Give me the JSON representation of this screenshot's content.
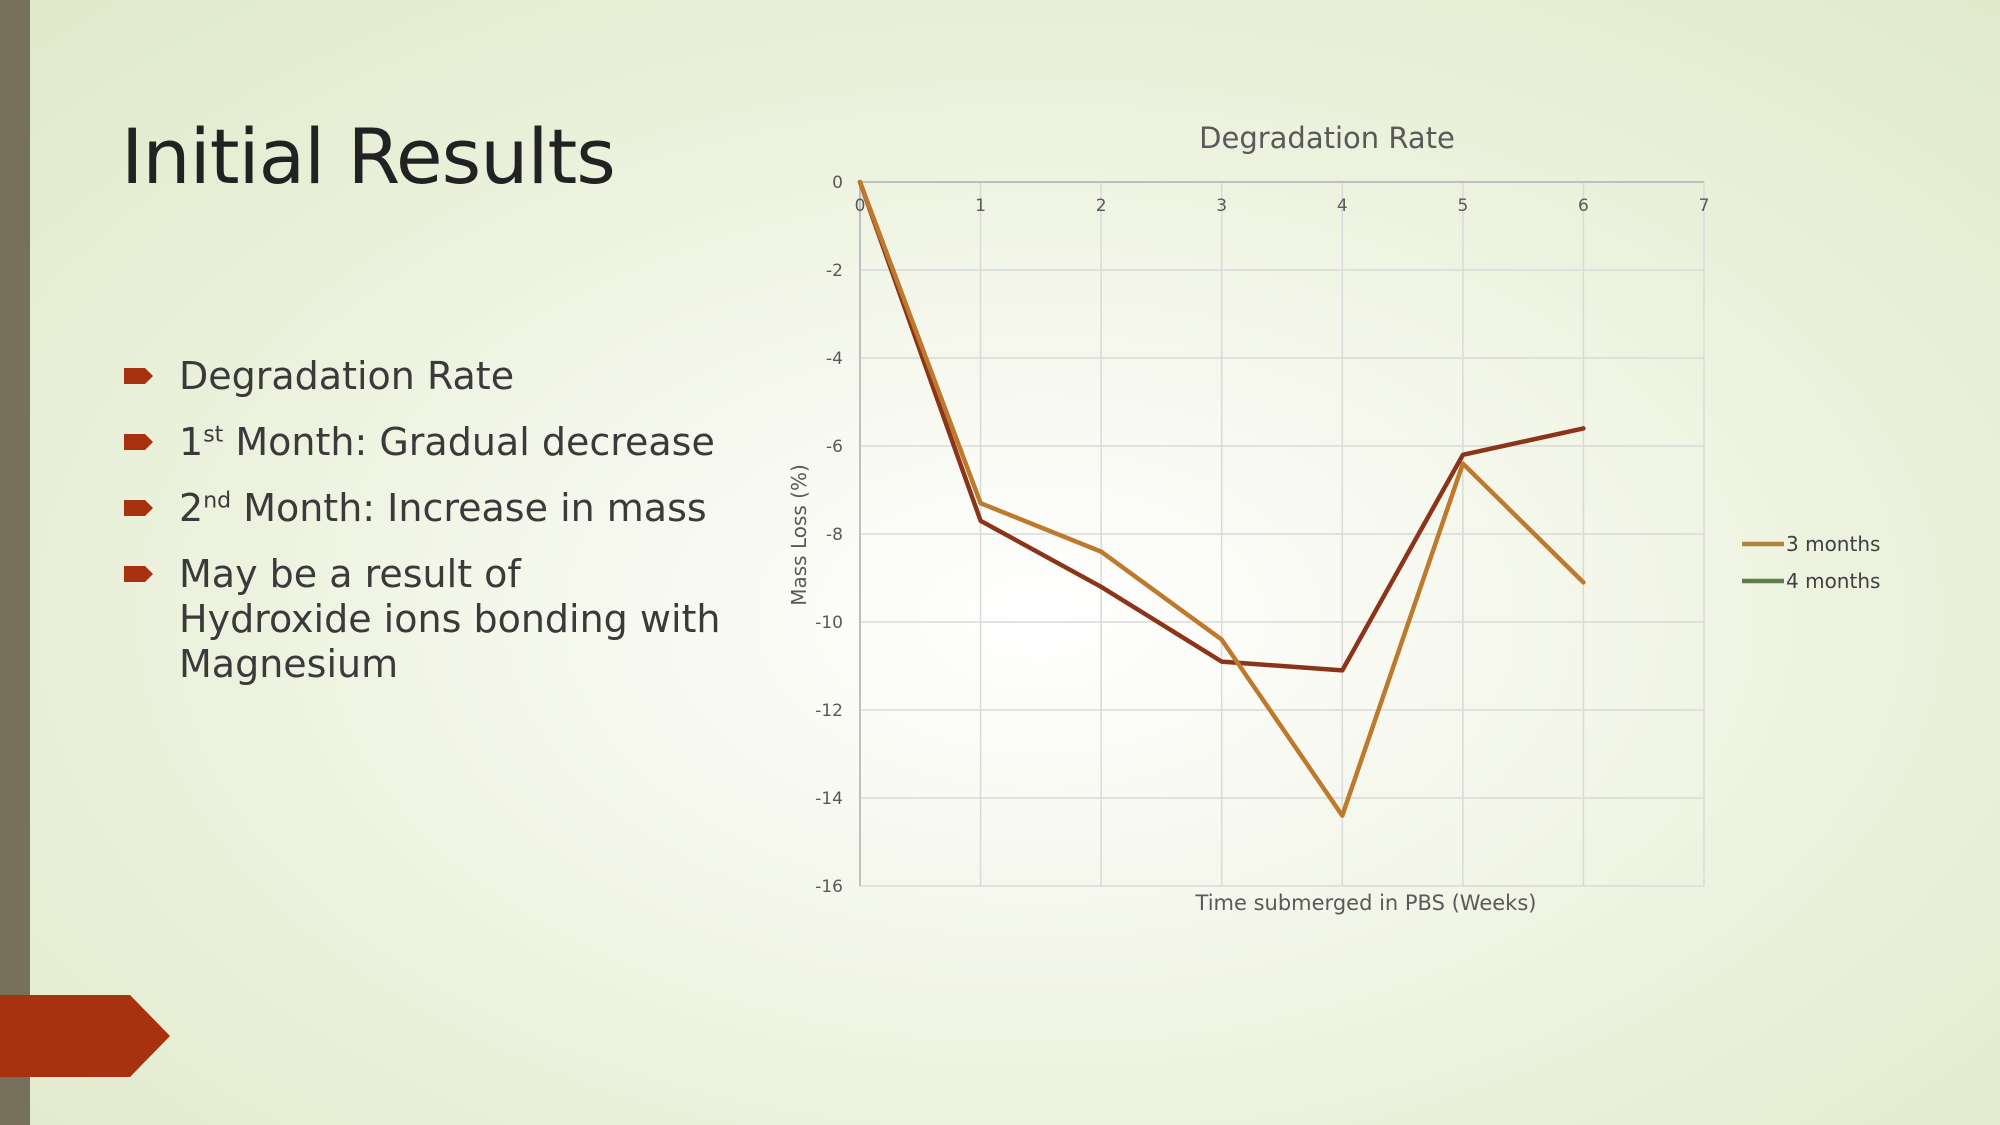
{
  "slide": {
    "title": "Initial Results",
    "accent_color": "#a8310f",
    "sidebar_color": "#77705a"
  },
  "bullets": [
    {
      "text": "Degradation Rate"
    },
    {
      "pre": "1",
      "sup": "st",
      "post": " Month: Gradual decrease"
    },
    {
      "pre": "2",
      "sup": "nd",
      "post": " Month: Increase in mass"
    },
    {
      "text": "May be a result of Hydroxide ions bonding with Magnesium"
    }
  ],
  "chart_data": {
    "type": "line",
    "title": "Degradation Rate",
    "xlabel": "Time submerged in PBS (Weeks)",
    "ylabel": "Mass Loss (%)",
    "xlim": [
      0,
      7
    ],
    "ylim": [
      -16,
      0
    ],
    "x_ticks": [
      0,
      1,
      2,
      3,
      4,
      5,
      6,
      7
    ],
    "y_ticks": [
      0,
      -2,
      -4,
      -6,
      -8,
      -10,
      -12,
      -14,
      -16
    ],
    "grid": true,
    "legend": "right",
    "legend_entries": [
      {
        "name": "3 months",
        "color": "#b0823c"
      },
      {
        "name": "4 months",
        "color": "#5f7f4a"
      }
    ],
    "series": [
      {
        "color": "#8b3419",
        "x": [
          0,
          1,
          2,
          3,
          4,
          5,
          6
        ],
        "values": [
          0,
          -7.7,
          -9.2,
          -10.9,
          -11.1,
          -6.2,
          -5.6
        ]
      },
      {
        "color": "#bd7a2c",
        "x": [
          0,
          1,
          2,
          3,
          4,
          5,
          6
        ],
        "values": [
          0,
          -7.3,
          -8.4,
          -10.4,
          -14.4,
          -6.4,
          -9.1
        ]
      }
    ]
  }
}
